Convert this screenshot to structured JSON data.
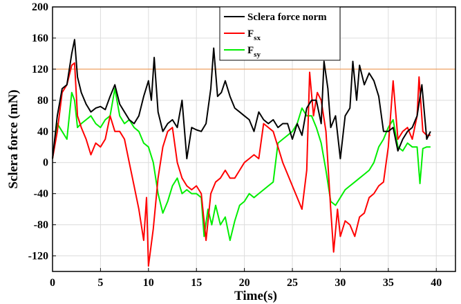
{
  "chart_data": {
    "type": "line",
    "xlabel": "Time(s)",
    "ylabel": "Sclera force (mN)",
    "xlim": [
      0,
      42
    ],
    "ylim": [
      -140,
      200
    ],
    "x_ticks": [
      0,
      5,
      10,
      15,
      20,
      25,
      30,
      35,
      40
    ],
    "y_ticks": [
      -120,
      -80,
      -40,
      0,
      40,
      80,
      120,
      160,
      200
    ],
    "grid": true,
    "legend_position": "top-right",
    "reference_line": {
      "y": 120,
      "color": "#f0a060"
    },
    "series": [
      {
        "name": "Sclera force norm",
        "legend_main": "Sclera force norm",
        "legend_sub": "",
        "color": "#000000",
        "x": [
          0,
          0.5,
          1,
          1.5,
          2,
          2.3,
          2.6,
          3,
          3.5,
          4,
          4.5,
          5,
          5.5,
          6,
          6.5,
          7,
          7.5,
          8,
          8.5,
          9,
          9.5,
          10,
          10.3,
          10.6,
          11,
          11.5,
          12,
          12.5,
          13,
          13.5,
          14,
          14.5,
          15,
          15.5,
          16,
          16.5,
          16.8,
          17.2,
          17.6,
          18,
          18.5,
          19,
          19.5,
          20,
          20.5,
          21,
          21.5,
          22,
          22.5,
          23,
          23.5,
          24,
          24.5,
          25,
          25.5,
          26,
          26.5,
          27,
          27.5,
          28,
          28.3,
          28.7,
          29,
          29.5,
          30,
          30.5,
          31,
          31.3,
          31.7,
          32,
          32.5,
          33,
          33.5,
          34,
          34.5,
          35,
          35.5,
          36,
          36.5,
          37,
          37.5,
          38,
          38.5,
          39,
          39.4
        ],
        "values": [
          5,
          60,
          95,
          100,
          140,
          158,
          110,
          90,
          75,
          65,
          70,
          72,
          68,
          85,
          100,
          75,
          65,
          55,
          50,
          60,
          85,
          105,
          80,
          135,
          65,
          40,
          50,
          55,
          45,
          80,
          5,
          45,
          42,
          40,
          50,
          95,
          147,
          85,
          90,
          105,
          85,
          70,
          65,
          60,
          55,
          40,
          65,
          55,
          50,
          55,
          45,
          50,
          50,
          30,
          50,
          35,
          70,
          80,
          80,
          50,
          130,
          95,
          45,
          60,
          5,
          60,
          70,
          130,
          80,
          125,
          100,
          115,
          105,
          85,
          40,
          40,
          45,
          15,
          30,
          40,
          45,
          60,
          100,
          30,
          40
        ]
      },
      {
        "name": "Fsx",
        "legend_main": "F",
        "legend_sub": "sx",
        "color": "#ff0000",
        "x": [
          0,
          0.5,
          1,
          1.5,
          2,
          2.3,
          2.6,
          3,
          3.5,
          4,
          4.5,
          5,
          5.5,
          6,
          6.5,
          7,
          7.5,
          8,
          8.5,
          9,
          9.5,
          9.8,
          10,
          10.5,
          11,
          11.5,
          12,
          12.5,
          13,
          13.5,
          14,
          14.5,
          15,
          15.5,
          16,
          16.5,
          17,
          17.5,
          18,
          18.5,
          19,
          19.5,
          20,
          20.5,
          21,
          21.5,
          22,
          22.5,
          23,
          23.5,
          24,
          24.5,
          25,
          25.5,
          26,
          26.5,
          26.8,
          27.2,
          27.6,
          28,
          28.5,
          29,
          29.3,
          29.7,
          30,
          30.5,
          31,
          31.5,
          32,
          32.5,
          33,
          33.5,
          34,
          34.5,
          35,
          35.5,
          36,
          36.5,
          37,
          37.5,
          38,
          38.2,
          38.6,
          39,
          39.4
        ],
        "values": [
          5,
          40,
          90,
          100,
          125,
          128,
          60,
          45,
          30,
          10,
          25,
          20,
          30,
          60,
          40,
          40,
          30,
          0,
          -30,
          -60,
          -100,
          -45,
          -133,
          -85,
          -20,
          20,
          40,
          45,
          0,
          -20,
          -30,
          -35,
          -30,
          -40,
          -100,
          -40,
          -25,
          -20,
          -10,
          -20,
          -20,
          -10,
          0,
          5,
          10,
          5,
          50,
          45,
          40,
          20,
          0,
          -15,
          -30,
          -45,
          -60,
          -10,
          116,
          60,
          90,
          80,
          40,
          -60,
          -115,
          -60,
          -95,
          -75,
          -80,
          -95,
          -70,
          -65,
          -45,
          -40,
          -30,
          -25,
          20,
          105,
          30,
          40,
          45,
          30,
          60,
          110,
          40,
          35,
          35
        ]
      },
      {
        "name": "Fsy",
        "legend_main": "F",
        "legend_sub": "sy",
        "color": "#00ee00",
        "x": [
          0,
          0.5,
          1,
          1.5,
          2,
          2.3,
          2.6,
          3,
          3.5,
          4,
          4.5,
          5,
          5.5,
          6,
          6.5,
          7,
          7.5,
          8,
          8.5,
          9,
          9.5,
          10,
          10.5,
          11,
          11.5,
          12,
          12.5,
          13,
          13.5,
          14,
          14.5,
          15,
          15.5,
          15.8,
          16.2,
          16.6,
          17,
          17.5,
          18,
          18.5,
          19,
          19.5,
          20,
          20.5,
          21,
          21.5,
          22,
          22.5,
          23,
          23.5,
          24,
          24.5,
          25,
          25.5,
          26,
          26.5,
          27,
          27.5,
          28,
          28.5,
          29,
          29.5,
          30,
          30.5,
          31,
          31.5,
          32,
          32.5,
          33,
          33.5,
          34,
          34.5,
          35,
          35.5,
          36,
          36.5,
          37,
          37.5,
          38,
          38.3,
          38.6,
          39,
          39.4
        ],
        "values": [
          5,
          50,
          40,
          30,
          90,
          80,
          45,
          50,
          55,
          60,
          50,
          45,
          55,
          60,
          95,
          60,
          50,
          55,
          45,
          40,
          25,
          20,
          0,
          -40,
          -65,
          -50,
          -30,
          -20,
          -40,
          -35,
          -40,
          -40,
          -45,
          -95,
          -60,
          -80,
          -55,
          -80,
          -70,
          -100,
          -75,
          -55,
          -50,
          -40,
          -45,
          -40,
          -35,
          -30,
          -25,
          25,
          30,
          35,
          40,
          50,
          70,
          60,
          60,
          45,
          25,
          -10,
          -50,
          -55,
          -45,
          -35,
          -30,
          -25,
          -20,
          -15,
          -10,
          0,
          20,
          30,
          45,
          55,
          20,
          15,
          25,
          20,
          20,
          -27,
          18,
          20,
          20
        ]
      }
    ]
  }
}
